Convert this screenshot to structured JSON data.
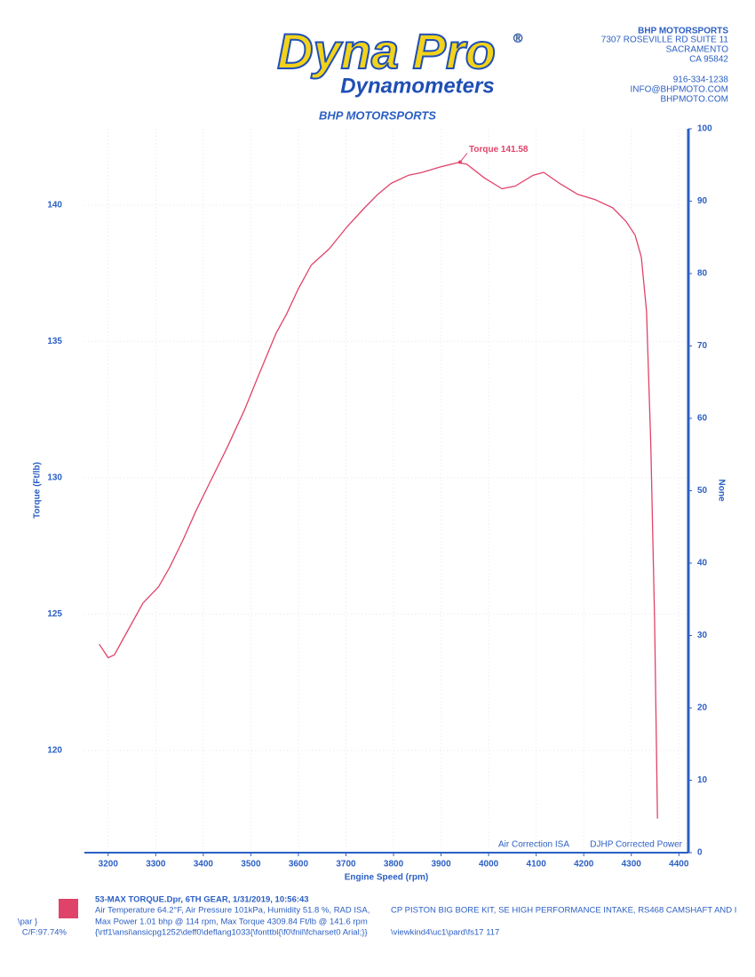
{
  "header": {
    "logo": "Dyna Pro",
    "logo_mark": "®",
    "logo_sub": "Dynamometers",
    "address": [
      "BHP MOTORSPORTS",
      "7307 ROSEVILLE RD SUITE 11",
      "SACRAMENTO",
      "CA 95842"
    ],
    "contact": [
      "916-334-1238",
      "INFO@BHPMOTO.COM",
      "BHPMOTO.COM"
    ]
  },
  "chart_data": {
    "type": "line",
    "title": "BHP MOTORSPORTS",
    "x_label": "Engine Speed (rpm)",
    "y_label": "Torque (Ft/lb)",
    "y2_label": "None",
    "x": [
      3181,
      3200,
      3213,
      3235,
      3273,
      3306,
      3329,
      3357,
      3385,
      3413,
      3450,
      3487,
      3515,
      3553,
      3575,
      3599,
      3627,
      3665,
      3702,
      3739,
      3767,
      3795,
      3832,
      3860,
      3898,
      3935,
      3954,
      3991,
      4028,
      4056,
      4094,
      4116,
      4149,
      4187,
      4224,
      4261,
      4289,
      4308,
      4321,
      4332,
      4341,
      4349,
      4355
    ],
    "series": [
      {
        "color": "#e0436a",
        "values": [
          123.9,
          123.4,
          123.5,
          124.2,
          125.4,
          126.0,
          126.7,
          127.7,
          128.8,
          129.8,
          131.1,
          132.5,
          133.7,
          135.3,
          136.0,
          136.9,
          137.8,
          138.4,
          139.2,
          139.9,
          140.4,
          140.8,
          141.1,
          141.2,
          141.4,
          141.56,
          141.5,
          141.0,
          140.6,
          140.7,
          141.1,
          141.2,
          140.8,
          140.4,
          140.2,
          139.9,
          139.4,
          138.9,
          138.1,
          136.1,
          131.2,
          124.7,
          117.5
        ]
      }
    ],
    "xlim": [
      3150,
      4420
    ],
    "xticks": [
      3200,
      3300,
      3400,
      3500,
      3600,
      3700,
      3800,
      3900,
      4000,
      4100,
      4200,
      4300,
      4400
    ],
    "ylim": [
      116.25,
      142.8
    ],
    "yticks": [
      120,
      125,
      130,
      135,
      140
    ],
    "y2lim": [
      0,
      100
    ],
    "y2ticks": [
      0,
      10,
      20,
      30,
      40,
      50,
      60,
      70,
      80,
      90,
      100
    ],
    "grid": true,
    "annotations": [
      {
        "text": "Torque 141.58",
        "x": 3940,
        "y": 141.58
      }
    ],
    "notes": [
      "Air Correction ISA",
      "DJHP Corrected Power"
    ]
  },
  "footer": {
    "lines": [
      "53-MAX TORQUE.Dpr,   6TH GEAR,   1/31/2019,   10:56:43",
      "Air Temperature 64.2°F, Air Pressure 101kPa, Humidity 51.8 %, RAD ISA,",
      "Max Power 1.01 bhp @ 114 rpm, Max Torque 4309.84 Ft/lb @ 141.6 rpm",
      "{\\rtf1\\ansi\\ansicpg1252\\deff0\\deflang1033{\\fonttbl{\\f0\\fnil\\fcharset0 Arial;}}"
    ],
    "left": [
      "\\par }",
      "C/F:97.74%"
    ],
    "right": [
      "CP PISTON BIG BORE KIT, SE HIGH PERFORMANCE INTAKE, RS468 CAMSHAFT AND I",
      "\\viewkind4\\uc1\\pard\\fs17 117"
    ]
  }
}
